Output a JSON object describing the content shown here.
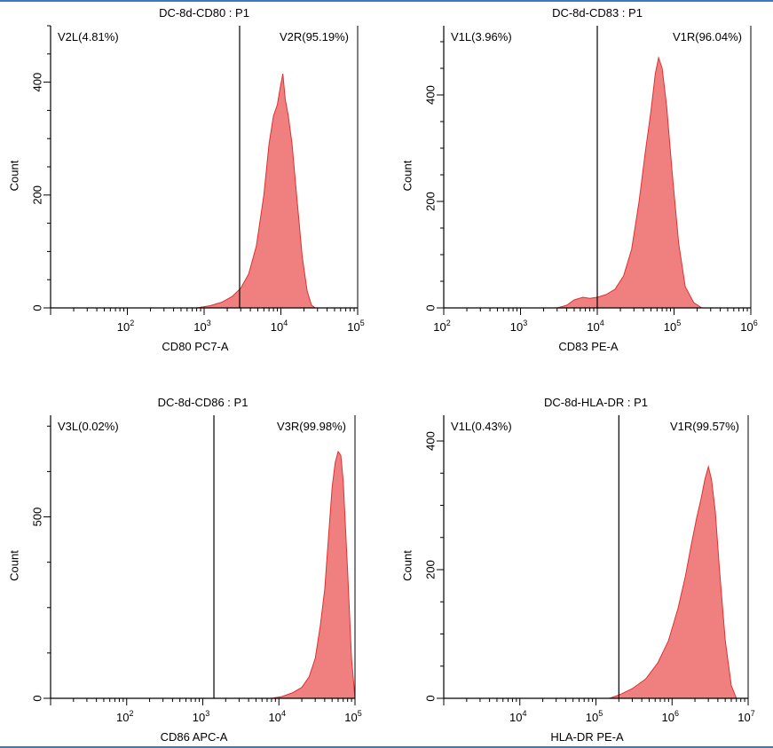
{
  "chart_data": [
    {
      "type": "area",
      "title": "DC-8d-CD80 : P1",
      "xlabel": "CD80 PC7-A",
      "ylabel": "Count",
      "xscale": "log",
      "xlim": [
        10,
        100000
      ],
      "ylim": [
        0,
        500
      ],
      "xticks": [
        {
          "value": 100,
          "base": "10",
          "exp": "2"
        },
        {
          "value": 1000,
          "base": "10",
          "exp": "3"
        },
        {
          "value": 10000,
          "base": "10",
          "exp": "4"
        },
        {
          "value": 100000,
          "base": "10",
          "exp": "5"
        }
      ],
      "yticks": [
        0,
        200,
        400
      ],
      "gate_value": 2900,
      "gates": [
        {
          "label": "V2L(4.81%)",
          "side": "left"
        },
        {
          "label": "V2R(95.19%)",
          "side": "right"
        }
      ],
      "fill_color": "#f08080",
      "stroke_color": "#e03030",
      "series": [
        {
          "x": [
            800,
            1200,
            1700,
            2300,
            3000,
            3800,
            4800,
            6000,
            7000,
            8000,
            9000,
            9800,
            10600,
            11400,
            12500,
            14000,
            16000,
            19000,
            22000,
            25000,
            28000
          ],
          "y": [
            0,
            4,
            10,
            20,
            35,
            60,
            110,
            200,
            290,
            340,
            360,
            390,
            415,
            370,
            340,
            290,
            200,
            90,
            30,
            5,
            0
          ]
        }
      ]
    },
    {
      "type": "area",
      "title": "DC-8d-CD83 : P1",
      "xlabel": "CD83 PE-A",
      "ylabel": "Count",
      "xscale": "log",
      "xlim": [
        100,
        1000000
      ],
      "ylim": [
        0,
        530
      ],
      "xticks": [
        {
          "value": 100,
          "base": "10",
          "exp": "2"
        },
        {
          "value": 1000,
          "base": "10",
          "exp": "3"
        },
        {
          "value": 10000,
          "base": "10",
          "exp": "4"
        },
        {
          "value": 100000,
          "base": "10",
          "exp": "5"
        },
        {
          "value": 1000000,
          "base": "10",
          "exp": "6"
        }
      ],
      "yticks": [
        0,
        200,
        400
      ],
      "gate_value": 10000,
      "gates": [
        {
          "label": "V1L(3.96%)",
          "side": "left"
        },
        {
          "label": "V1R(96.04%)",
          "side": "right"
        }
      ],
      "fill_color": "#f08080",
      "stroke_color": "#e03030",
      "series": [
        {
          "x": [
            3000,
            4000,
            5000,
            6500,
            8000,
            10000,
            13000,
            17000,
            22000,
            28000,
            35000,
            42000,
            50000,
            57000,
            63000,
            70000,
            80000,
            95000,
            115000,
            140000,
            180000,
            230000
          ],
          "y": [
            0,
            5,
            15,
            20,
            18,
            20,
            25,
            35,
            60,
            110,
            200,
            290,
            370,
            440,
            470,
            450,
            380,
            250,
            120,
            40,
            10,
            0
          ]
        }
      ]
    },
    {
      "type": "area",
      "title": "DC-8d-CD86 : P1",
      "xlabel": "CD86 APC-A",
      "ylabel": "Count",
      "xscale": "log",
      "xlim": [
        10,
        100000
      ],
      "ylim": [
        0,
        780
      ],
      "xticks": [
        {
          "value": 100,
          "base": "10",
          "exp": "2"
        },
        {
          "value": 1000,
          "base": "10",
          "exp": "3"
        },
        {
          "value": 10000,
          "base": "10",
          "exp": "4"
        },
        {
          "value": 100000,
          "base": "10",
          "exp": "5"
        }
      ],
      "yticks": [
        0,
        500
      ],
      "gate_value": 1400,
      "gates": [
        {
          "label": "V3L(0.02%)",
          "side": "left"
        },
        {
          "label": "V3R(99.98%)",
          "side": "right"
        }
      ],
      "fill_color": "#f08080",
      "stroke_color": "#e03030",
      "series": [
        {
          "x": [
            8000,
            11000,
            15000,
            20000,
            25000,
            30000,
            35000,
            40000,
            45000,
            50000,
            55000,
            60000,
            65000,
            70000,
            80000,
            90000,
            100000
          ],
          "y": [
            0,
            5,
            15,
            30,
            60,
            110,
            200,
            300,
            450,
            580,
            650,
            680,
            670,
            600,
            350,
            110,
            0
          ]
        }
      ]
    },
    {
      "type": "area",
      "title": "DC-8d-HLA-DR : P1",
      "xlabel": "HLA-DR PE-A",
      "ylabel": "Count",
      "xscale": "log",
      "xlim": [
        1000,
        10000000
      ],
      "ylim": [
        0,
        440
      ],
      "xticks": [
        {
          "value": 10000,
          "base": "10",
          "exp": "4"
        },
        {
          "value": 100000,
          "base": "10",
          "exp": "5"
        },
        {
          "value": 1000000,
          "base": "10",
          "exp": "6"
        },
        {
          "value": 10000000,
          "base": "10",
          "exp": "7"
        }
      ],
      "yticks": [
        0,
        200,
        400
      ],
      "gate_value": 200000,
      "gates": [
        {
          "label": "V1L(0.43%)",
          "side": "left"
        },
        {
          "label": "V1R(99.57%)",
          "side": "right"
        }
      ],
      "fill_color": "#f08080",
      "stroke_color": "#e03030",
      "series": [
        {
          "x": [
            150000,
            200000,
            300000,
            450000,
            650000,
            900000,
            1200000,
            1500000,
            1800000,
            2100000,
            2400000,
            2700000,
            3000000,
            3300000,
            3700000,
            4200000,
            5000000,
            6000000,
            7000000
          ],
          "y": [
            0,
            5,
            15,
            30,
            55,
            90,
            140,
            190,
            240,
            280,
            310,
            340,
            360,
            340,
            290,
            200,
            90,
            20,
            0
          ]
        }
      ]
    }
  ]
}
